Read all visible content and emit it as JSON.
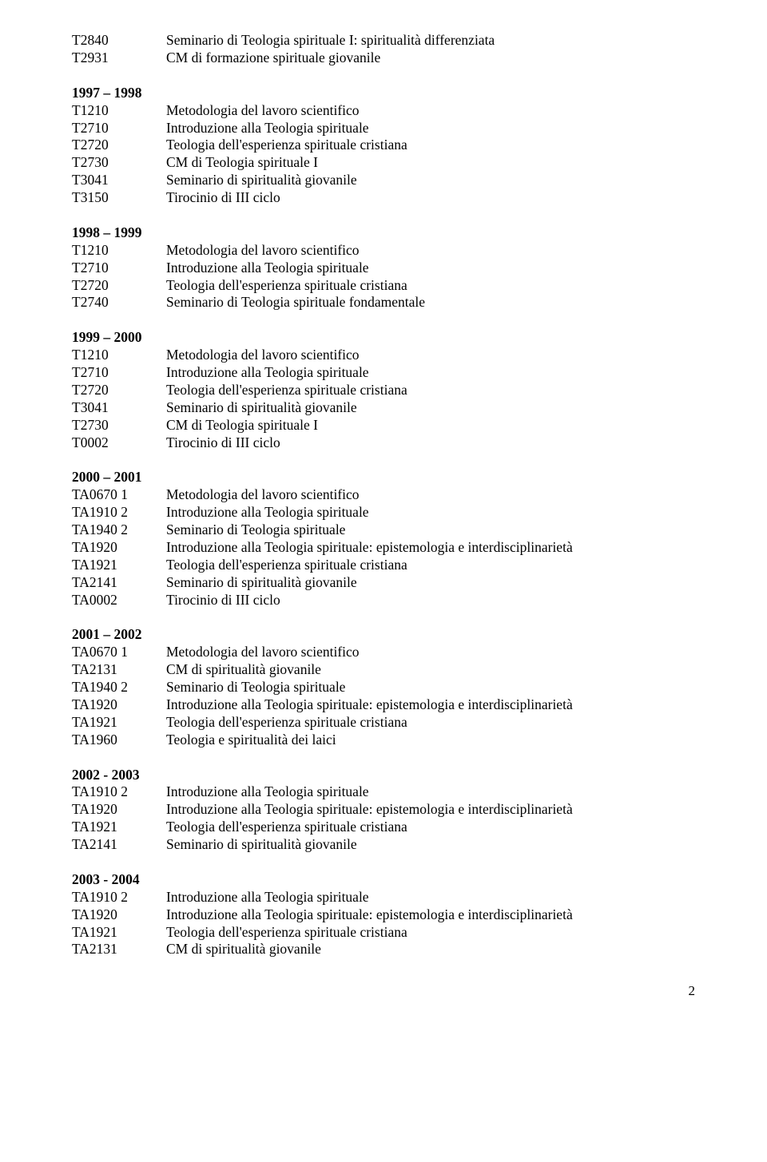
{
  "text_color": "#000000",
  "background_color": "#ffffff",
  "font_family": "Garamond, 'Times New Roman', serif",
  "font_size_pt": 13,
  "page_number": "2",
  "intro_rows": [
    {
      "code": "T2840",
      "desc": "Seminario di Teologia spirituale I: spiritualità differenziata"
    },
    {
      "code": "T2931",
      "desc": "CM di formazione spirituale giovanile"
    }
  ],
  "sections": [
    {
      "heading": "1997 – 1998",
      "rows": [
        {
          "code": "T1210",
          "desc": "Metodologia del lavoro scientifico"
        },
        {
          "code": "T2710",
          "desc": "Introduzione alla Teologia spirituale"
        },
        {
          "code": "T2720",
          "desc": "Teologia dell'esperienza spirituale cristiana"
        },
        {
          "code": "T2730",
          "desc": "CM di Teologia spirituale I"
        },
        {
          "code": "T3041",
          "desc": "Seminario di spiritualità giovanile"
        },
        {
          "code": "T3150",
          "desc": "Tirocinio di III ciclo"
        }
      ]
    },
    {
      "heading": "1998 – 1999",
      "rows": [
        {
          "code": "T1210",
          "desc": "Metodologia del lavoro scientifico"
        },
        {
          "code": "T2710",
          "desc": "Introduzione alla Teologia spirituale"
        },
        {
          "code": "T2720",
          "desc": "Teologia dell'esperienza spirituale cristiana"
        },
        {
          "code": "T2740",
          "desc": "Seminario di Teologia spirituale fondamentale"
        }
      ]
    },
    {
      "heading": "1999 – 2000",
      "rows": [
        {
          "code": "T1210",
          "desc": "Metodologia del lavoro scientifico"
        },
        {
          "code": "T2710",
          "desc": "Introduzione alla Teologia spirituale"
        },
        {
          "code": "T2720",
          "desc": "Teologia dell'esperienza spirituale cristiana"
        },
        {
          "code": "T3041",
          "desc": "Seminario di spiritualità giovanile"
        },
        {
          "code": "T2730",
          "desc": "CM di Teologia spirituale I"
        },
        {
          "code": "T0002",
          "desc": "Tirocinio di III ciclo"
        }
      ]
    },
    {
      "heading": "2000 – 2001",
      "rows": [
        {
          "code": "TA0670  1",
          "desc": "Metodologia del lavoro scientifico"
        },
        {
          "code": "TA1910  2",
          "desc": "Introduzione alla Teologia spirituale"
        },
        {
          "code": "TA1940  2",
          "desc": "Seminario di Teologia spirituale"
        },
        {
          "code": "TA1920",
          "desc": "Introduzione alla Teologia spirituale: epistemologia e interdisciplinarietà"
        },
        {
          "code": "TA1921",
          "desc": "Teologia dell'esperienza spirituale cristiana"
        },
        {
          "code": "TA2141",
          "desc": "Seminario di spiritualità giovanile"
        },
        {
          "code": "TA0002",
          "desc": "Tirocinio di III ciclo"
        }
      ]
    },
    {
      "heading": "2001 – 2002",
      "rows": [
        {
          "code": "TA0670  1",
          "desc": "Metodologia del lavoro scientifico"
        },
        {
          "code": "TA2131",
          "desc": "CM di spiritualità giovanile"
        },
        {
          "code": "TA1940  2",
          "desc": "Seminario di Teologia spirituale"
        },
        {
          "code": "TA1920",
          "desc": "Introduzione alla Teologia spirituale: epistemologia e interdisciplinarietà"
        },
        {
          "code": "TA1921",
          "desc": "Teologia dell'esperienza spirituale cristiana"
        },
        {
          "code": "TA1960",
          "desc": "Teologia e spiritualità dei laici"
        }
      ]
    },
    {
      "heading": "2002 - 2003",
      "rows": [
        {
          "code": "TA1910  2",
          "desc": "Introduzione alla Teologia spirituale"
        },
        {
          "code": "TA1920",
          "desc": "Introduzione alla Teologia spirituale: epistemologia e interdisciplinarietà"
        },
        {
          "code": "TA1921",
          "desc": "Teologia dell'esperienza spirituale cristiana"
        },
        {
          "code": "TA2141",
          "desc": "Seminario di spiritualità giovanile"
        }
      ]
    },
    {
      "heading": "2003 - 2004",
      "rows": [
        {
          "code": "TA1910  2",
          "desc": "Introduzione alla Teologia spirituale"
        },
        {
          "code": "TA1920",
          "desc": "Introduzione alla Teologia spirituale: epistemologia e interdisciplinarietà"
        },
        {
          "code": "TA1921",
          "desc": "Teologia dell'esperienza spirituale cristiana"
        },
        {
          "code": "TA2131",
          "desc": "CM di spiritualità giovanile"
        }
      ]
    }
  ]
}
